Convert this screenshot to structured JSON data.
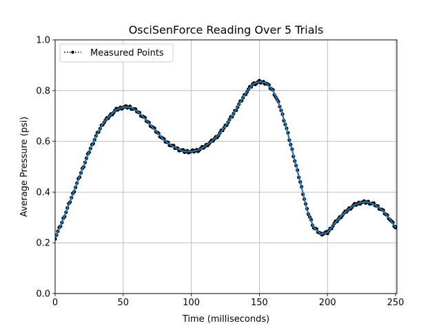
{
  "chart_data": {
    "type": "line",
    "title": "OsciSenForce Reading Over 5 Trials",
    "xlabel": "Time (milliseconds)",
    "ylabel": "Average Pressure (psi)",
    "xlim": [
      0,
      251
    ],
    "ylim": [
      0.0,
      1.0
    ],
    "xticks": [
      0,
      50,
      100,
      150,
      200,
      250
    ],
    "xtick_labels": [
      "0",
      "50",
      "100",
      "150",
      "200",
      "250"
    ],
    "yticks": [
      0.0,
      0.2,
      0.4,
      0.6,
      0.8,
      1.0
    ],
    "ytick_labels": [
      "0.0",
      "0.2",
      "0.4",
      "0.6",
      "0.8",
      "1.0"
    ],
    "grid": true,
    "legend": {
      "position": "top-left",
      "entries": [
        "Measured Points"
      ]
    },
    "series": [
      {
        "name": "Measured Points",
        "style": "dotted-with-markers",
        "color": "#000000",
        "x": [
          0,
          5,
          10,
          15,
          20,
          25,
          30,
          35,
          40,
          45,
          50,
          55,
          60,
          65,
          70,
          75,
          80,
          85,
          90,
          95,
          100,
          105,
          110,
          115,
          120,
          125,
          130,
          135,
          140,
          145,
          150,
          155,
          160,
          165,
          170,
          175,
          180,
          185,
          190,
          195,
          200,
          205,
          210,
          215,
          220,
          225,
          230,
          235,
          240,
          245,
          250
        ],
        "y": [
          0.22,
          0.28,
          0.35,
          0.42,
          0.49,
          0.56,
          0.62,
          0.67,
          0.7,
          0.725,
          0.735,
          0.735,
          0.72,
          0.695,
          0.665,
          0.635,
          0.605,
          0.585,
          0.57,
          0.56,
          0.56,
          0.565,
          0.58,
          0.6,
          0.625,
          0.66,
          0.7,
          0.745,
          0.79,
          0.825,
          0.835,
          0.83,
          0.8,
          0.74,
          0.65,
          0.545,
          0.44,
          0.33,
          0.26,
          0.235,
          0.24,
          0.275,
          0.305,
          0.33,
          0.35,
          0.36,
          0.36,
          0.35,
          0.33,
          0.3,
          0.26
        ]
      },
      {
        "name": "",
        "style": "solid",
        "color": "#1f77b4",
        "x": [
          0,
          5,
          10,
          15,
          20,
          25,
          30,
          35,
          40,
          45,
          50,
          55,
          60,
          65,
          70,
          75,
          80,
          85,
          90,
          95,
          100,
          105,
          110,
          115,
          120,
          125,
          130,
          135,
          140,
          145,
          150,
          155,
          160,
          165,
          170,
          175,
          180,
          185,
          190,
          195,
          200,
          205,
          210,
          215,
          220,
          225,
          230,
          235,
          240,
          245,
          250
        ],
        "y": [
          0.22,
          0.28,
          0.35,
          0.42,
          0.49,
          0.56,
          0.62,
          0.67,
          0.7,
          0.725,
          0.735,
          0.735,
          0.72,
          0.695,
          0.665,
          0.635,
          0.605,
          0.585,
          0.57,
          0.56,
          0.56,
          0.565,
          0.58,
          0.6,
          0.625,
          0.66,
          0.7,
          0.745,
          0.79,
          0.825,
          0.835,
          0.83,
          0.8,
          0.74,
          0.65,
          0.545,
          0.44,
          0.33,
          0.26,
          0.235,
          0.24,
          0.275,
          0.305,
          0.33,
          0.35,
          0.36,
          0.36,
          0.35,
          0.33,
          0.3,
          0.26
        ]
      }
    ]
  }
}
